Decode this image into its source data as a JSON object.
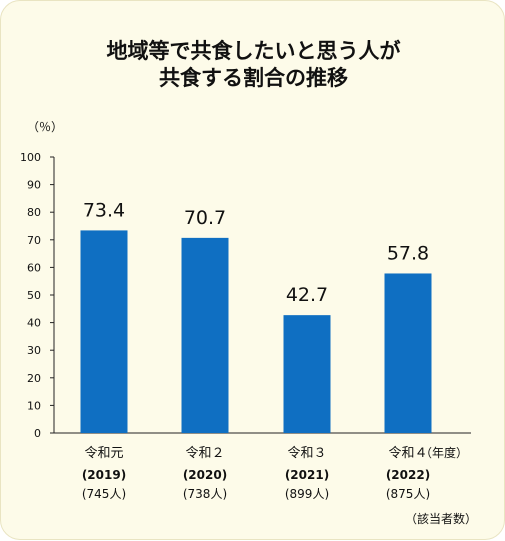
{
  "chart_data": {
    "type": "bar",
    "title_lines": [
      "地域等で共食したいと思う人が",
      "共食する割合の推移"
    ],
    "y_unit": "（％）",
    "ylim": [
      0,
      100
    ],
    "y_ticks": [
      0,
      10,
      20,
      30,
      40,
      50,
      60,
      70,
      80,
      90,
      100
    ],
    "categories": [
      {
        "era": "令和元",
        "year": "(2019)",
        "n": "(745人)"
      },
      {
        "era": "令和２",
        "year": "(2020)",
        "n": "(738人)"
      },
      {
        "era": "令和３",
        "year": "(2021)",
        "n": "(899人)"
      },
      {
        "era": "令和４",
        "year": "(2022)",
        "n": "(875人)"
      }
    ],
    "values": [
      73.4,
      70.7,
      42.7,
      57.8
    ],
    "x_unit": "（年度）",
    "note": "（該当者数）",
    "bar_color": "#0f6fc2",
    "grid": false
  }
}
